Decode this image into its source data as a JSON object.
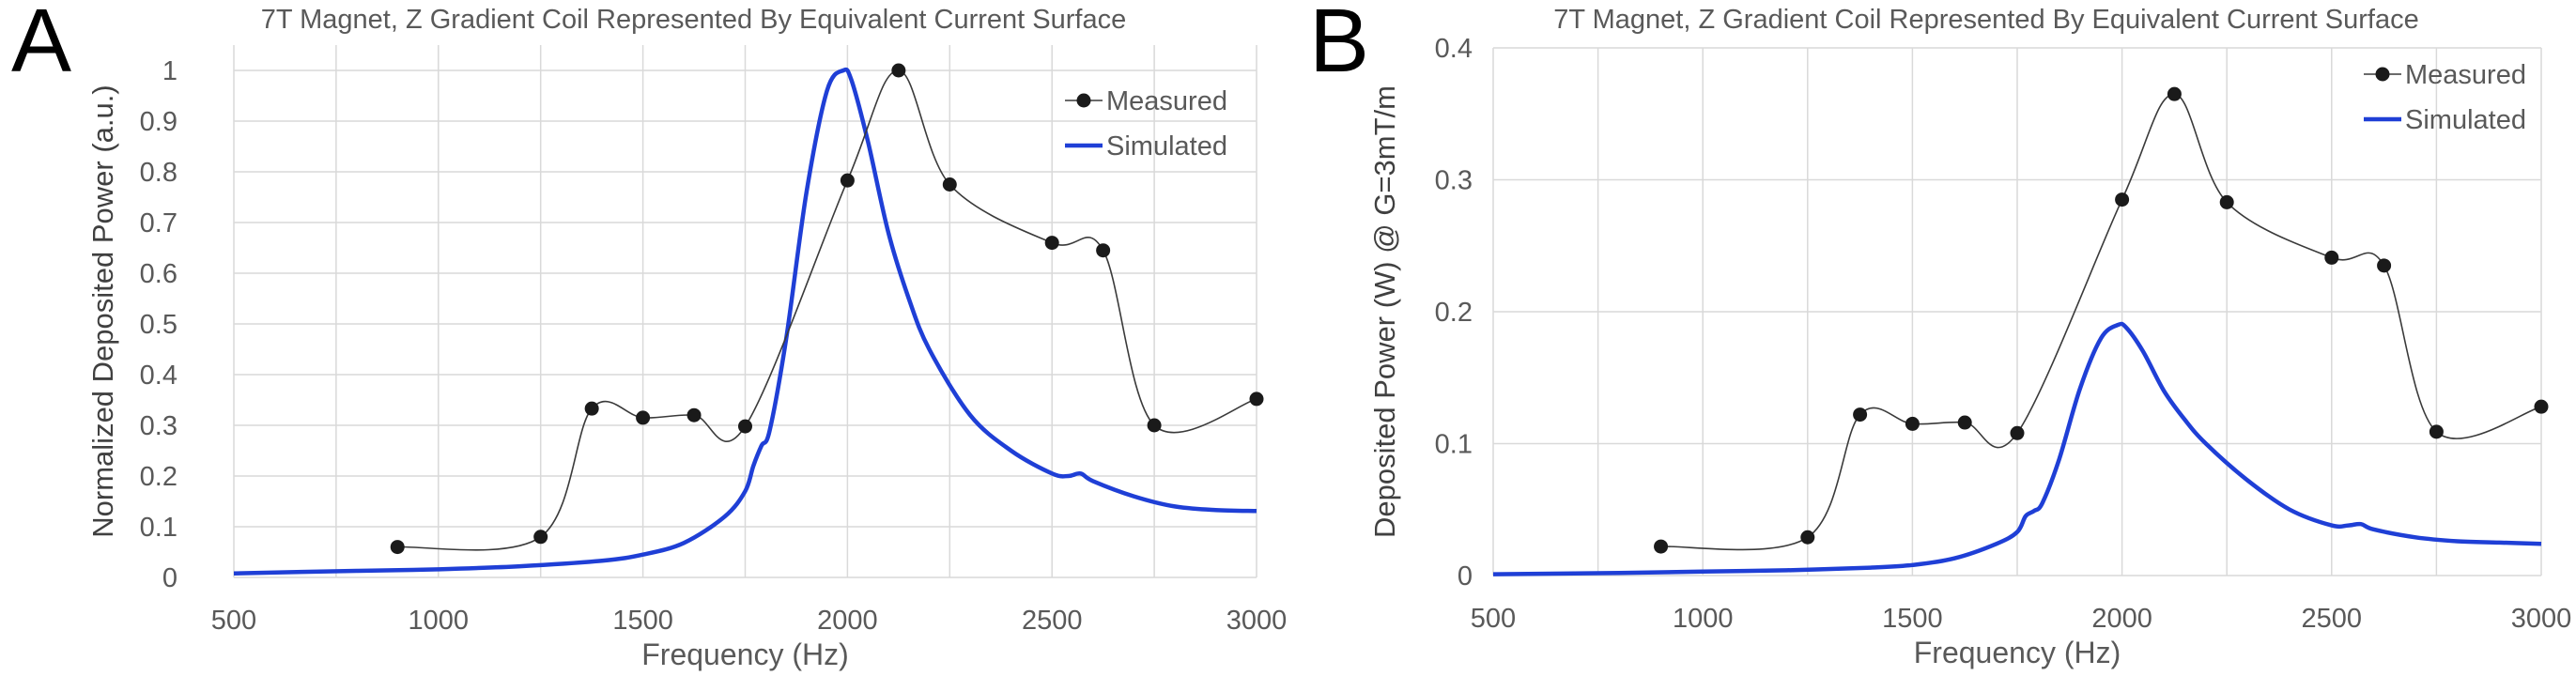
{
  "figure": {
    "panels": [
      {
        "letter": "A"
      },
      {
        "letter": "B"
      }
    ]
  },
  "colors": {
    "measured": "#1a1a1a",
    "simulated": "#1f3fd6",
    "grid": "#d9d9d9",
    "axis_text": "#595959"
  },
  "chart_data": [
    {
      "type": "line",
      "panel": "A",
      "title": "7T Magnet, Z Gradient Coil Represented By Equivalent Current Surface",
      "xlabel": "Frequency (Hz)",
      "ylabel": "Normalized Deposited Power (a.u.)",
      "xlim": [
        500,
        3000
      ],
      "ylim": [
        0,
        1.05
      ],
      "xticks": [
        500,
        1000,
        1500,
        2000,
        2500,
        3000
      ],
      "yticks": [
        0,
        0.1,
        0.2,
        0.3,
        0.4,
        0.5,
        0.6,
        0.7,
        0.8,
        0.9,
        1
      ],
      "ytick_labels": [
        "0",
        "0.1",
        "0.2",
        "0.3",
        "0.4",
        "0.5",
        "0.6",
        "0.7",
        "0.8",
        "0.9",
        "1"
      ],
      "legend_position": "top-right",
      "series": [
        {
          "name": "Measured",
          "style": "smooth-line-markers",
          "x": [
            900,
            1250,
            1375,
            1500,
            1625,
            1750,
            2000,
            2125,
            2250,
            2500,
            2625,
            2750,
            3000
          ],
          "y": [
            0.06,
            0.08,
            0.333,
            0.315,
            0.32,
            0.298,
            0.783,
            1.0,
            0.775,
            0.66,
            0.645,
            0.3,
            0.352
          ]
        },
        {
          "name": "Simulated",
          "style": "smooth-line",
          "x": [
            500,
            800,
            1000,
            1200,
            1400,
            1500,
            1600,
            1700,
            1750,
            1770,
            1790,
            1810,
            1850,
            1900,
            1950,
            1990,
            2010,
            2050,
            2100,
            2150,
            2200,
            2300,
            2400,
            2500,
            2540,
            2570,
            2600,
            2700,
            2800,
            2900,
            3000
          ],
          "y": [
            0.008,
            0.013,
            0.016,
            0.022,
            0.033,
            0.045,
            0.068,
            0.12,
            0.17,
            0.22,
            0.26,
            0.29,
            0.47,
            0.76,
            0.96,
            1.0,
            0.98,
            0.86,
            0.68,
            0.55,
            0.45,
            0.32,
            0.25,
            0.205,
            0.2,
            0.205,
            0.19,
            0.16,
            0.14,
            0.133,
            0.131
          ]
        }
      ]
    },
    {
      "type": "line",
      "panel": "B",
      "title": "7T Magnet, Z Gradient Coil Represented By Equivalent Current Surface",
      "xlabel": "Frequency (Hz)",
      "ylabel": "Deposited Power (W) @ G=3mT/m",
      "xlim": [
        500,
        3000
      ],
      "ylim": [
        0,
        0.4
      ],
      "xticks": [
        500,
        1000,
        1500,
        2000,
        2500,
        3000
      ],
      "yticks": [
        0,
        0.1,
        0.2,
        0.3,
        0.4
      ],
      "ytick_labels": [
        "0",
        "0.1",
        "0.2",
        "0.3",
        "0.4"
      ],
      "legend_position": "top-right",
      "series": [
        {
          "name": "Measured",
          "style": "smooth-line-markers",
          "x": [
            900,
            1250,
            1375,
            1500,
            1625,
            1750,
            2000,
            2125,
            2250,
            2500,
            2625,
            2750,
            3000
          ],
          "y": [
            0.022,
            0.029,
            0.122,
            0.115,
            0.116,
            0.108,
            0.285,
            0.365,
            0.283,
            0.241,
            0.235,
            0.109,
            0.128
          ]
        },
        {
          "name": "Simulated",
          "style": "smooth-line",
          "x": [
            500,
            800,
            1000,
            1200,
            1400,
            1500,
            1600,
            1700,
            1750,
            1770,
            1790,
            1810,
            1850,
            1900,
            1950,
            1990,
            2010,
            2050,
            2100,
            2150,
            2200,
            2300,
            2400,
            2500,
            2540,
            2570,
            2600,
            2700,
            2800,
            2900,
            3000
          ],
          "y": [
            0.001,
            0.002,
            0.003,
            0.004,
            0.006,
            0.008,
            0.013,
            0.024,
            0.033,
            0.045,
            0.049,
            0.055,
            0.088,
            0.142,
            0.18,
            0.19,
            0.188,
            0.17,
            0.14,
            0.118,
            0.1,
            0.072,
            0.05,
            0.038,
            0.038,
            0.039,
            0.035,
            0.029,
            0.026,
            0.025,
            0.024
          ]
        }
      ]
    }
  ]
}
